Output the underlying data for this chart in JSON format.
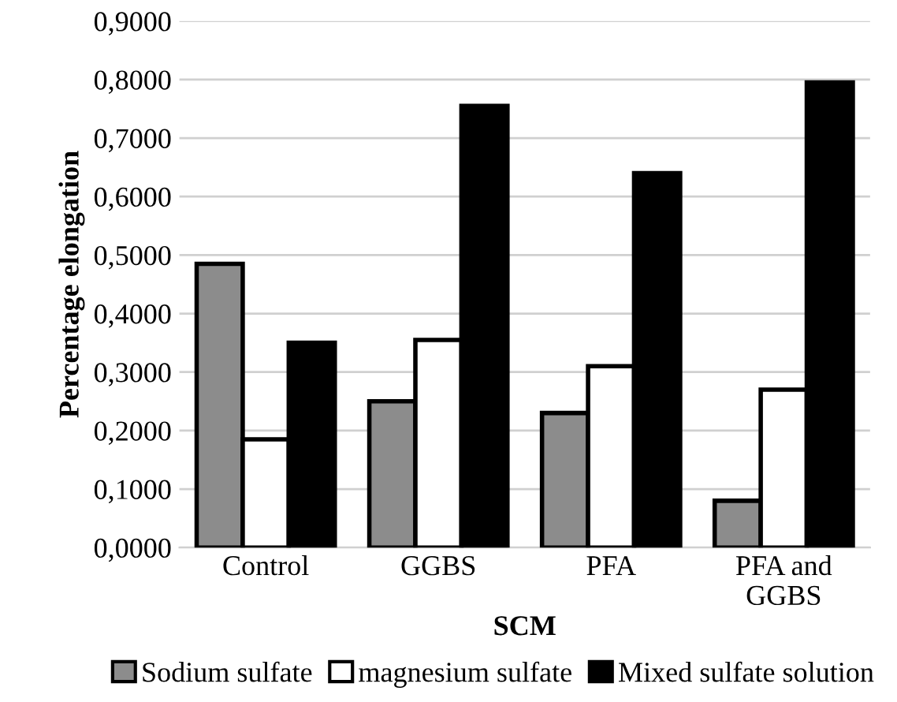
{
  "chart_data": {
    "type": "bar",
    "xlabel": "SCM",
    "ylabel": "Percentage elongation",
    "categories": [
      "Control",
      "GGBS",
      "PFA",
      "PFA and GGBS"
    ],
    "series": [
      {
        "name": "Sodium sulfate",
        "color": "#8c8c8c",
        "values": [
          0.485,
          0.25,
          0.23,
          0.08
        ]
      },
      {
        "name": "magnesium sulfate",
        "color": "#ffffff",
        "values": [
          0.185,
          0.355,
          0.31,
          0.27
        ]
      },
      {
        "name": "Mixed sulfate solution",
        "color": "#000000",
        "values": [
          0.35,
          0.755,
          0.64,
          0.795
        ]
      }
    ],
    "ylim": [
      0,
      0.9
    ],
    "yticks": [
      {
        "value": 0,
        "label": "0,0000"
      },
      {
        "value": 0.1,
        "label": "0,1000"
      },
      {
        "value": 0.2,
        "label": "0,2000"
      },
      {
        "value": 0.3,
        "label": "0,3000"
      },
      {
        "value": 0.4,
        "label": "0,4000"
      },
      {
        "value": 0.5,
        "label": "0,5000"
      },
      {
        "value": 0.6,
        "label": "0,6000"
      },
      {
        "value": 0.7,
        "label": "0,7000"
      },
      {
        "value": 0.8,
        "label": "0,8000"
      },
      {
        "value": 0.9,
        "label": "0,9000"
      }
    ],
    "grid": "y",
    "legend": "bottom"
  }
}
